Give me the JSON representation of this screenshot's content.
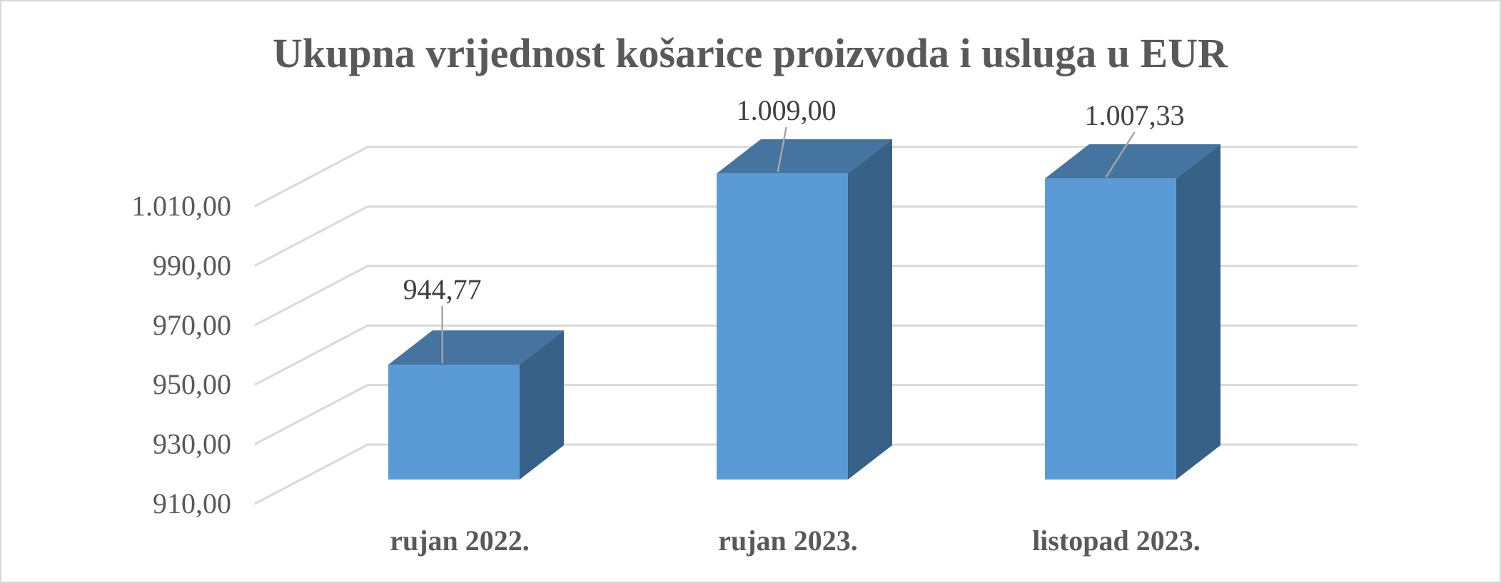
{
  "chart_data": {
    "type": "bar",
    "title": "Ukupna vrijednost košarice proizvoda i usluga u EUR",
    "categories": [
      "rujan 2022.",
      "rujan 2023.",
      "listopad 2023."
    ],
    "series": [
      {
        "values": [
          944.77,
          1009.0,
          1007.33
        ]
      }
    ],
    "data_labels": [
      "944,77",
      "1.009,00",
      "1.007,33"
    ],
    "y_tick_labels": [
      "910,00",
      "930,00",
      "950,00",
      "970,00",
      "990,00",
      "1.010,00"
    ],
    "ylim": [
      910,
      1010
    ],
    "y_tick_values": [
      910,
      930,
      950,
      970,
      990,
      1010
    ],
    "grid": true,
    "style": "3d-column",
    "colors": {
      "bar_front": "#5b9bd5",
      "bar_top": "#44749f",
      "bar_side": "#376186",
      "grid": "#d9d9d9",
      "text": "#595959",
      "leader": "#a6a6a6"
    }
  }
}
